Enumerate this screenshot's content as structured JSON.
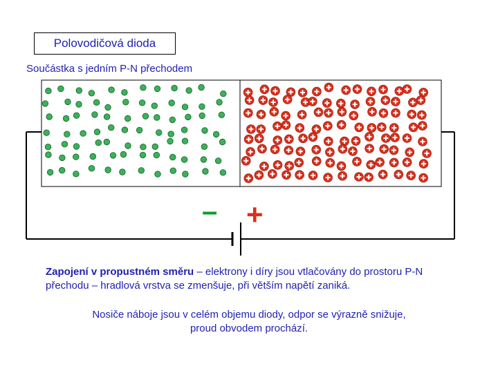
{
  "title": "Polovodičová dioda",
  "subtitle": "Součástka s jedním P-N přechodem",
  "polarity": {
    "negative": "–",
    "positive": "+"
  },
  "description": {
    "emphasis": "Zapojení v propustném směru",
    "rest": " – elektrony i díry jsou vtlačovány do prostoru P-N přechodu – hradlová vrstva se zmenšuje, při větším napětí zaniká."
  },
  "conclusion": "Nosiče náboje jsou v celém objemu diody, odpor se výrazně snižuje, proud obvodem prochází.",
  "colors": {
    "text": "#1f1fb0",
    "electron_fill": "#3cb15a",
    "hole_fill": "#d8301c",
    "minus_sign": "#0a9e2c",
    "plus_sign": "#d8301c"
  },
  "diagram": {
    "n_region_particle": "electron",
    "p_region_particle": "hole"
  }
}
